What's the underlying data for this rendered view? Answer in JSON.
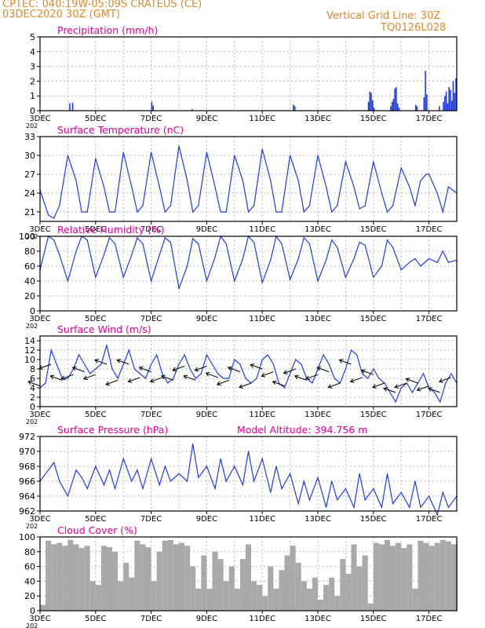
{
  "header": {
    "line1_left": "CPTEC:   040:19W-05:09S   CRATEUS (CE)",
    "line2_left": "03DEC2020 30Z (GMT)",
    "line1_right": "Vertical Grid Line: 30Z",
    "line2_right": "TQ0126L028",
    "accent_color": "#e08a2c"
  },
  "colors": {
    "title": "#e0009a",
    "series": "#1f3de0",
    "cloud": "#a9a9a9",
    "grid": "#b8b8b8"
  },
  "x_axis": {
    "start_day": 3,
    "end_day": 18,
    "tick_days": [
      3,
      5,
      7,
      9,
      11,
      13,
      15,
      17
    ],
    "tick_labels": [
      "3DEC",
      "5DEC",
      "7DEC",
      "9DEC",
      "11DEC",
      "13DEC",
      "15DEC",
      "17DEC"
    ],
    "year_fragment": "202"
  },
  "chart_data": [
    {
      "type": "bar",
      "key": "precip",
      "title": "Precipitation (mm/h)",
      "ylim": [
        0,
        5
      ],
      "yticks": [
        0,
        1,
        2,
        3,
        4,
        5
      ],
      "bars": [
        [
          4.05,
          0.5
        ],
        [
          4.15,
          0.55
        ],
        [
          7.0,
          0.6
        ],
        [
          7.05,
          0.35
        ],
        [
          8.45,
          0.1
        ],
        [
          12.1,
          0.4
        ],
        [
          12.15,
          0.3
        ],
        [
          14.8,
          0.6
        ],
        [
          14.85,
          1.3
        ],
        [
          14.9,
          1.2
        ],
        [
          14.95,
          0.7
        ],
        [
          15.0,
          0.2
        ],
        [
          15.6,
          0.3
        ],
        [
          15.65,
          0.6
        ],
        [
          15.7,
          0.8
        ],
        [
          15.75,
          1.5
        ],
        [
          15.8,
          1.6
        ],
        [
          15.85,
          0.5
        ],
        [
          15.9,
          0.2
        ],
        [
          16.5,
          0.4
        ],
        [
          16.55,
          0.3
        ],
        [
          16.8,
          0.9
        ],
        [
          16.85,
          2.7
        ],
        [
          16.9,
          1.1
        ],
        [
          17.35,
          0.3
        ],
        [
          17.5,
          0.6
        ],
        [
          17.55,
          1.0
        ],
        [
          17.6,
          1.3
        ],
        [
          17.65,
          0.5
        ],
        [
          17.7,
          1.6
        ],
        [
          17.75,
          1.4
        ],
        [
          17.8,
          0.7
        ],
        [
          17.85,
          2.0
        ],
        [
          17.9,
          1.2
        ],
        [
          17.95,
          2.2
        ]
      ]
    },
    {
      "type": "line",
      "key": "temp",
      "title": "Surface Temperature (nC)",
      "ylim": [
        19.5,
        33
      ],
      "yticks": [
        21,
        24,
        27,
        30,
        33
      ],
      "x": [
        3.0,
        3.3,
        3.5,
        3.7,
        4.0,
        4.3,
        4.5,
        4.7,
        5.0,
        5.3,
        5.5,
        5.7,
        6.0,
        6.3,
        6.5,
        6.7,
        7.0,
        7.3,
        7.5,
        7.7,
        8.0,
        8.3,
        8.5,
        8.7,
        9.0,
        9.3,
        9.5,
        9.7,
        10.0,
        10.3,
        10.5,
        10.7,
        11.0,
        11.3,
        11.5,
        11.7,
        12.0,
        12.3,
        12.5,
        12.7,
        13.0,
        13.3,
        13.5,
        13.7,
        14.0,
        14.3,
        14.5,
        14.7,
        15.0,
        15.3,
        15.5,
        15.7,
        16.0,
        16.3,
        16.5,
        16.7,
        16.9,
        17.0,
        17.3,
        17.5,
        17.7,
        18.0
      ],
      "values": [
        24.5,
        20.5,
        20.0,
        22,
        30,
        26,
        21,
        21,
        29.5,
        25,
        21,
        21,
        30.5,
        25,
        21,
        22,
        30.5,
        25,
        21,
        22,
        31.5,
        26,
        21,
        22,
        30.5,
        25,
        21,
        21,
        30,
        26,
        21,
        22,
        31,
        26,
        21,
        21,
        30,
        26,
        21,
        22,
        30,
        25,
        21,
        22,
        29,
        25,
        21.5,
        22,
        29,
        24,
        21,
        22,
        28,
        25,
        22,
        26,
        27,
        27,
        24,
        21,
        25,
        24
      ]
    },
    {
      "type": "line",
      "key": "rh",
      "title": "Relative Humidity (%)",
      "ylim": [
        0,
        100
      ],
      "yticks": [
        0,
        20,
        40,
        60,
        80,
        100
      ],
      "x": [
        3.0,
        3.3,
        3.5,
        3.7,
        4.0,
        4.3,
        4.5,
        4.7,
        5.0,
        5.3,
        5.5,
        5.7,
        6.0,
        6.3,
        6.5,
        6.7,
        7.0,
        7.3,
        7.5,
        7.7,
        8.0,
        8.3,
        8.5,
        8.7,
        9.0,
        9.3,
        9.5,
        9.7,
        10.0,
        10.3,
        10.5,
        10.7,
        11.0,
        11.3,
        11.5,
        11.7,
        12.0,
        12.3,
        12.5,
        12.7,
        13.0,
        13.3,
        13.5,
        13.7,
        14.0,
        14.3,
        14.5,
        14.7,
        15.0,
        15.3,
        15.5,
        15.7,
        16.0,
        16.3,
        16.5,
        16.7,
        17.0,
        17.3,
        17.5,
        17.7,
        18.0
      ],
      "values": [
        55,
        100,
        95,
        75,
        40,
        80,
        100,
        95,
        45,
        75,
        98,
        90,
        45,
        75,
        98,
        90,
        40,
        75,
        98,
        92,
        30,
        60,
        97,
        90,
        40,
        72,
        100,
        90,
        40,
        70,
        100,
        92,
        38,
        68,
        100,
        90,
        42,
        70,
        98,
        90,
        40,
        68,
        95,
        85,
        45,
        70,
        92,
        88,
        45,
        60,
        95,
        85,
        55,
        65,
        70,
        60,
        70,
        65,
        80,
        65,
        68
      ]
    },
    {
      "type": "line",
      "key": "wind",
      "title": "Surface Wind (m/s)",
      "ylim": [
        0,
        15
      ],
      "yticks": [
        0,
        2,
        4,
        6,
        8,
        10,
        12,
        14
      ],
      "x": [
        3.0,
        3.2,
        3.4,
        3.6,
        3.8,
        4.0,
        4.2,
        4.4,
        4.6,
        4.8,
        5.0,
        5.2,
        5.4,
        5.6,
        5.8,
        6.0,
        6.2,
        6.4,
        6.6,
        6.8,
        7.0,
        7.2,
        7.4,
        7.6,
        7.8,
        8.0,
        8.2,
        8.4,
        8.6,
        8.8,
        9.0,
        9.2,
        9.4,
        9.6,
        9.8,
        10.0,
        10.2,
        10.4,
        10.6,
        10.8,
        11.0,
        11.2,
        11.4,
        11.6,
        11.8,
        12.0,
        12.2,
        12.4,
        12.6,
        12.8,
        13.0,
        13.2,
        13.4,
        13.6,
        13.8,
        14.0,
        14.2,
        14.4,
        14.6,
        14.8,
        15.0,
        15.2,
        15.4,
        15.6,
        15.8,
        16.0,
        16.2,
        16.4,
        16.6,
        16.8,
        17.0,
        17.2,
        17.4,
        17.6,
        17.8,
        18.0
      ],
      "values": [
        4,
        5,
        12,
        9,
        6,
        6,
        8,
        11,
        9,
        7,
        8,
        9,
        13,
        8,
        6,
        9,
        12,
        8,
        7,
        6,
        9,
        11,
        7,
        5,
        6,
        9,
        11,
        8,
        6,
        7,
        11,
        9,
        7,
        6,
        6,
        10,
        9,
        6,
        5,
        6,
        10,
        11,
        9,
        5,
        4,
        7,
        10,
        9,
        6,
        5,
        8,
        11,
        9,
        6,
        5,
        8,
        12,
        11,
        7,
        6,
        8,
        6,
        5,
        3,
        1,
        4,
        5,
        3,
        5,
        7,
        4,
        3,
        1,
        5,
        7,
        5
      ]
    },
    {
      "type": "line",
      "key": "pres",
      "title": "Surface Pressure (hPa)",
      "annotation": "Model Altitude: 394.756 m",
      "ylim": [
        962,
        972
      ],
      "yticks": [
        962,
        964,
        966,
        968,
        970,
        972
      ],
      "x": [
        3.0,
        3.3,
        3.5,
        3.7,
        4.0,
        4.3,
        4.5,
        4.7,
        5.0,
        5.3,
        5.5,
        5.7,
        6.0,
        6.3,
        6.5,
        6.7,
        7.0,
        7.3,
        7.5,
        7.7,
        8.0,
        8.3,
        8.5,
        8.7,
        9.0,
        9.3,
        9.5,
        9.7,
        10.0,
        10.3,
        10.5,
        10.7,
        11.0,
        11.3,
        11.5,
        11.7,
        12.0,
        12.3,
        12.5,
        12.7,
        13.0,
        13.3,
        13.5,
        13.7,
        14.0,
        14.3,
        14.5,
        14.7,
        15.0,
        15.3,
        15.5,
        15.7,
        16.0,
        16.3,
        16.5,
        16.7,
        17.0,
        17.3,
        17.5,
        17.7,
        18.0
      ],
      "values": [
        966,
        967.5,
        968.5,
        966,
        964,
        967.5,
        966.5,
        965,
        968,
        965.5,
        967.5,
        965,
        969,
        966,
        967.5,
        965,
        969,
        965.5,
        968,
        966,
        967,
        966,
        971,
        966.5,
        968,
        965,
        969,
        966,
        968,
        965.5,
        970,
        966,
        969,
        964.5,
        968,
        965,
        967,
        963,
        966,
        963.5,
        966.5,
        962.5,
        966,
        963.5,
        965,
        962.5,
        967,
        963.5,
        965,
        962.5,
        967,
        963,
        964.5,
        962.5,
        966,
        962.5,
        964,
        961.5,
        964.5,
        962.5,
        964
      ]
    },
    {
      "type": "area",
      "key": "cloud",
      "title": "Cloud Cover (%)",
      "ylim": [
        0,
        100
      ],
      "yticks": [
        0,
        20,
        40,
        60,
        80,
        100
      ],
      "x": [
        3.0,
        3.2,
        3.4,
        3.6,
        3.8,
        4.0,
        4.2,
        4.4,
        4.6,
        4.8,
        5.0,
        5.2,
        5.4,
        5.6,
        5.8,
        6.0,
        6.2,
        6.4,
        6.6,
        6.8,
        7.0,
        7.2,
        7.4,
        7.6,
        7.8,
        8.0,
        8.2,
        8.4,
        8.6,
        8.8,
        9.0,
        9.2,
        9.4,
        9.6,
        9.8,
        10.0,
        10.2,
        10.4,
        10.6,
        10.8,
        11.0,
        11.2,
        11.4,
        11.6,
        11.8,
        12.0,
        12.2,
        12.4,
        12.6,
        12.8,
        13.0,
        13.2,
        13.4,
        13.6,
        13.8,
        14.0,
        14.2,
        14.4,
        14.6,
        14.8,
        15.0,
        15.2,
        15.4,
        15.6,
        15.8,
        16.0,
        16.2,
        16.4,
        16.6,
        16.8,
        17.0,
        17.2,
        17.4,
        17.6,
        17.8,
        18.0
      ],
      "values": [
        8,
        95,
        90,
        92,
        88,
        96,
        90,
        85,
        88,
        40,
        35,
        88,
        86,
        80,
        40,
        65,
        45,
        95,
        90,
        86,
        40,
        80,
        95,
        96,
        90,
        92,
        88,
        60,
        30,
        75,
        30,
        80,
        70,
        40,
        60,
        30,
        70,
        90,
        40,
        35,
        20,
        60,
        30,
        55,
        75,
        88,
        65,
        40,
        30,
        45,
        15,
        35,
        45,
        20,
        70,
        50,
        90,
        60,
        75,
        10,
        92,
        90,
        96,
        88,
        92,
        85,
        90,
        30,
        95,
        92,
        88,
        92,
        96,
        94,
        90,
        95
      ]
    }
  ]
}
